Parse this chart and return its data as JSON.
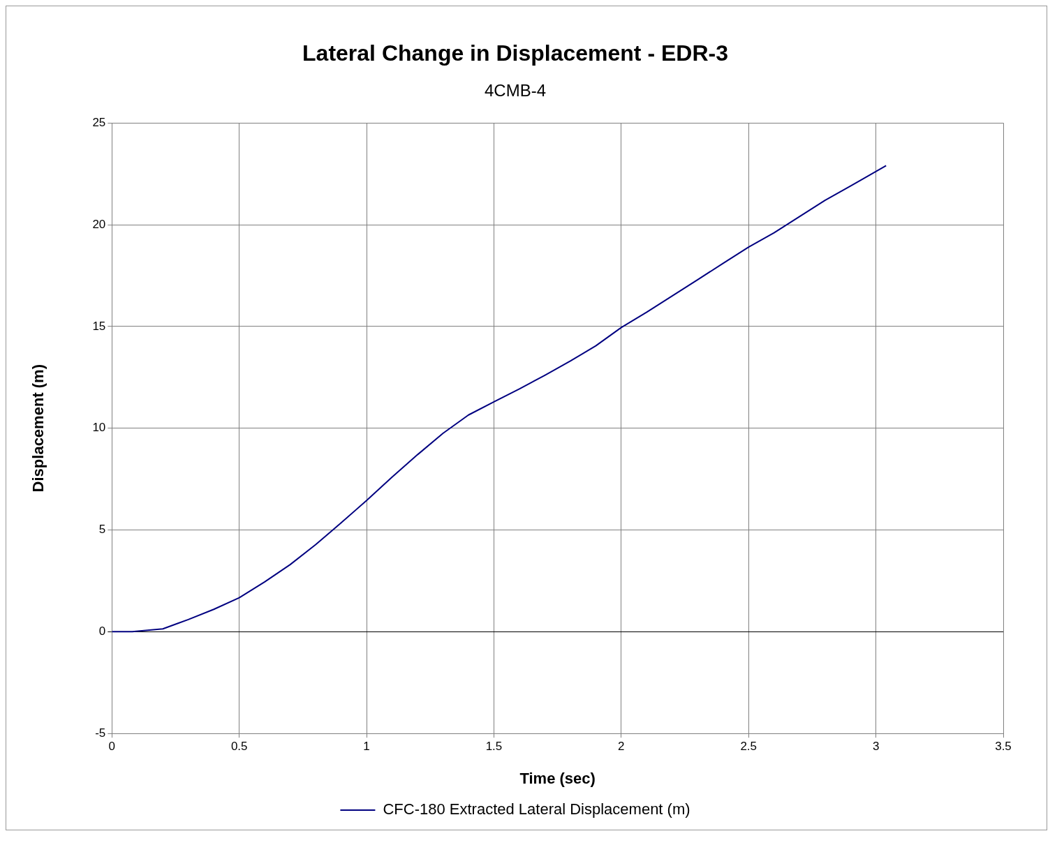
{
  "chart_data": {
    "type": "line",
    "title": "Lateral Change in Displacement - EDR-3",
    "subtitle": "4CMB-4",
    "xlabel": "Time (sec)",
    "ylabel": "Displacement (m)",
    "x": [
      0,
      0.08,
      0.2,
      0.3,
      0.4,
      0.5,
      0.6,
      0.7,
      0.8,
      0.9,
      1.0,
      1.1,
      1.2,
      1.3,
      1.4,
      1.5,
      1.6,
      1.7,
      1.8,
      1.9,
      2.0,
      2.1,
      2.2,
      2.3,
      2.4,
      2.5,
      2.6,
      2.7,
      2.8,
      2.9,
      3.04
    ],
    "series": [
      {
        "name": "CFC-180 Extracted Lateral Displacement (m)",
        "color": "#000080",
        "values": [
          0,
          0,
          0.14,
          0.6,
          1.1,
          1.67,
          2.45,
          3.3,
          4.28,
          5.35,
          6.45,
          7.6,
          8.7,
          9.75,
          10.65,
          11.3,
          11.93,
          12.6,
          13.3,
          14.05,
          14.95,
          15.7,
          16.5,
          17.3,
          18.1,
          18.9,
          19.6,
          20.4,
          21.2,
          21.9,
          22.9
        ]
      }
    ],
    "xlim": [
      0,
      3.5
    ],
    "xticks": [
      0,
      0.5,
      1,
      1.5,
      2,
      2.5,
      3,
      3.5
    ],
    "ylim": [
      -5,
      25
    ],
    "yticks": [
      -5,
      0,
      5,
      10,
      15,
      20,
      25
    ],
    "grid": true,
    "legend": "bottom",
    "marker": "none",
    "line_style": "solid"
  }
}
